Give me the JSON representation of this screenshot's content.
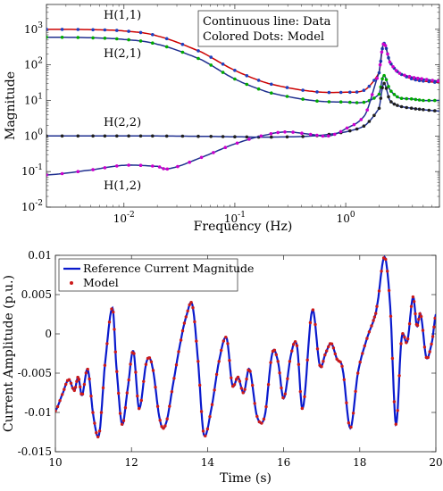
{
  "chart_data": [
    {
      "type": "line",
      "x_scale": "log",
      "y_scale": "log",
      "xlabel": "Frequency (Hz)",
      "ylabel": "Magnitude",
      "xlim": [
        0.002,
        7
      ],
      "ylim": [
        0.01,
        5000
      ],
      "xticks": [
        "10^{-2}",
        "10^{-1}",
        "10^{0}"
      ],
      "yticks": [
        "10^{-2}",
        "10^{-1}",
        "10^{0}",
        "10^{1}",
        "10^{2}",
        "10^{3}"
      ],
      "annotation_box": [
        "Continuous line: Data",
        "Colored Dots: Model"
      ],
      "curve_labels": [
        "H(1,1)",
        "H(2,1)",
        "H(2,2)",
        "H(1,2)"
      ],
      "series": [
        {
          "name": "H(1,1)",
          "line_color": "#cc0000",
          "dot_color": "#1f3fbf",
          "x": [
            0.002,
            0.005,
            0.01,
            0.02,
            0.05,
            0.1,
            0.2,
            0.5,
            1.0,
            1.5,
            2.0,
            2.2,
            2.5,
            3.0,
            4.0,
            5.0,
            7.0
          ],
          "y": [
            1000,
            980,
            900,
            650,
            230,
            70,
            30,
            18,
            17,
            20,
            60,
            400,
            120,
            60,
            40,
            35,
            32
          ]
        },
        {
          "name": "H(2,1)",
          "line_color": "#1f2f8f",
          "dot_color": "#00aa00",
          "x": [
            0.002,
            0.005,
            0.01,
            0.02,
            0.05,
            0.1,
            0.2,
            0.5,
            1.0,
            1.5,
            2.0,
            2.2,
            2.5,
            3.0,
            4.0,
            5.0,
            7.0
          ],
          "y": [
            600,
            580,
            520,
            380,
            140,
            40,
            17,
            10,
            9,
            9,
            15,
            50,
            20,
            12,
            11,
            10,
            10
          ]
        },
        {
          "name": "H(2,2)",
          "line_color": "#1f2f8f",
          "dot_color": "#202020",
          "x": [
            0.002,
            0.005,
            0.01,
            0.02,
            0.05,
            0.1,
            0.2,
            0.5,
            1.0,
            1.5,
            2.0,
            2.2,
            2.5,
            3.0,
            4.0,
            5.0,
            7.0
          ],
          "y": [
            1.0,
            1.0,
            1.0,
            1.0,
            0.98,
            0.95,
            0.93,
            1.0,
            1.3,
            2.0,
            6.0,
            30.0,
            10.0,
            7.0,
            6.0,
            5.5,
            5.0
          ]
        },
        {
          "name": "H(1,2)",
          "line_color": "#1f2f8f",
          "dot_color": "#cc00cc",
          "x": [
            0.002,
            0.005,
            0.01,
            0.02,
            0.025,
            0.05,
            0.1,
            0.2,
            0.3,
            0.5,
            0.7,
            1.0,
            1.5,
            2.0,
            2.2,
            2.5,
            3.0,
            4.0,
            5.0,
            7.0
          ],
          "y": [
            0.08,
            0.11,
            0.15,
            0.14,
            0.12,
            0.25,
            0.6,
            1.1,
            1.3,
            1.1,
            1.0,
            1.6,
            4.0,
            60.0,
            400.0,
            120.0,
            60.0,
            45.0,
            40.0,
            35.0
          ]
        }
      ]
    },
    {
      "type": "line",
      "xlabel": "Time (s)",
      "ylabel": "Current Amplitude (p.u.)",
      "xlim": [
        10,
        20
      ],
      "ylim": [
        -0.015,
        0.01
      ],
      "xticks": [
        "10",
        "12",
        "14",
        "16",
        "18",
        "20"
      ],
      "yticks": [
        "-0.015",
        "-0.01",
        "-0.005",
        "0",
        "0.005",
        "0.01"
      ],
      "legend": [
        "Reference Current Magnitude",
        "Model"
      ],
      "legend_position": "top-left",
      "series": [
        {
          "name": "Reference Current Magnitude",
          "color": "#0a1acc",
          "x": [
            10.0,
            10.2,
            10.35,
            10.5,
            10.6,
            10.7,
            10.85,
            11.0,
            11.15,
            11.3,
            11.5,
            11.6,
            11.75,
            11.9,
            12.05,
            12.2,
            12.4,
            12.55,
            12.75,
            12.9,
            13.1,
            13.3,
            13.45,
            13.6,
            13.75,
            13.9,
            14.1,
            14.3,
            14.5,
            14.65,
            14.8,
            14.95,
            15.1,
            15.3,
            15.5,
            15.7,
            15.85,
            16.0,
            16.2,
            16.35,
            16.5,
            16.75,
            16.95,
            17.1,
            17.25,
            17.4,
            17.55,
            17.75,
            17.95,
            18.15,
            18.35,
            18.45,
            18.65,
            18.8,
            18.95,
            19.1,
            19.25,
            19.4,
            19.5,
            19.6,
            19.75,
            19.9,
            20.0
          ],
          "y": [
            -0.0098,
            -0.0075,
            -0.0058,
            -0.0072,
            -0.0055,
            -0.0078,
            -0.0045,
            -0.0105,
            -0.0128,
            -0.004,
            0.0033,
            -0.004,
            -0.0115,
            -0.007,
            -0.0022,
            -0.0095,
            -0.0035,
            -0.0042,
            -0.011,
            -0.0115,
            -0.0062,
            -0.0008,
            0.0024,
            0.0037,
            -0.0035,
            -0.0128,
            -0.0095,
            -0.0035,
            -0.0005,
            -0.0065,
            -0.0055,
            -0.0075,
            -0.0045,
            -0.0105,
            -0.0105,
            -0.0025,
            -0.0035,
            -0.0082,
            -0.0025,
            -0.0015,
            -0.0095,
            0.003,
            -0.004,
            -0.0025,
            -0.0012,
            -0.0032,
            -0.0045,
            -0.012,
            -0.005,
            -0.0012,
            0.0015,
            0.0035,
            0.0098,
            0.0035,
            -0.0115,
            -0.0005,
            -0.001,
            0.0047,
            0.001,
            0.0025,
            -0.003,
            -0.001,
            0.0025
          ]
        },
        {
          "name": "Model",
          "color": "#cc1a1a",
          "marker": "dot"
        }
      ]
    }
  ]
}
